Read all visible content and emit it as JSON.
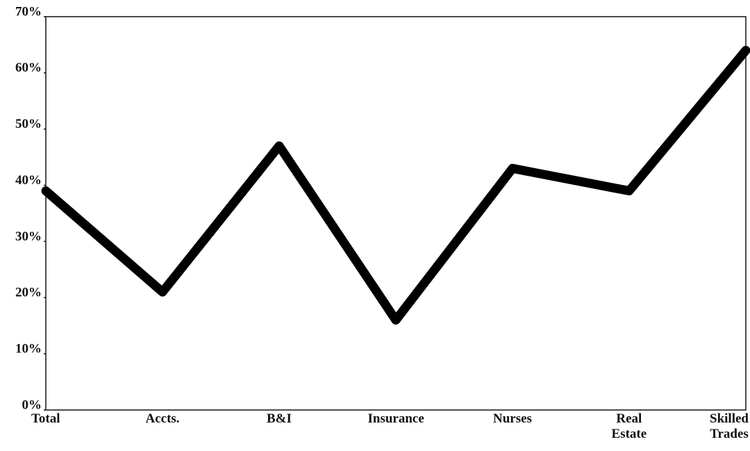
{
  "chart_data": {
    "type": "line",
    "categories": [
      "Total",
      "Accts.",
      "B&I",
      "Insurance",
      "Nurses",
      "Real Estate",
      "Skilled Trades"
    ],
    "series": [
      {
        "color": "#000000",
        "values": [
          39,
          21,
          47,
          16,
          43,
          39,
          64
        ]
      }
    ],
    "ylim": [
      0,
      70
    ],
    "yticks": [
      {
        "value": 0,
        "label": "0%"
      },
      {
        "value": 10,
        "label": "10%"
      },
      {
        "value": 20,
        "label": "20%"
      },
      {
        "value": 30,
        "label": "30%"
      },
      {
        "value": 40,
        "label": "40%"
      },
      {
        "value": 50,
        "label": "50%"
      },
      {
        "value": 60,
        "label": "60%"
      },
      {
        "value": 70,
        "label": "70%"
      }
    ],
    "grid": false
  }
}
